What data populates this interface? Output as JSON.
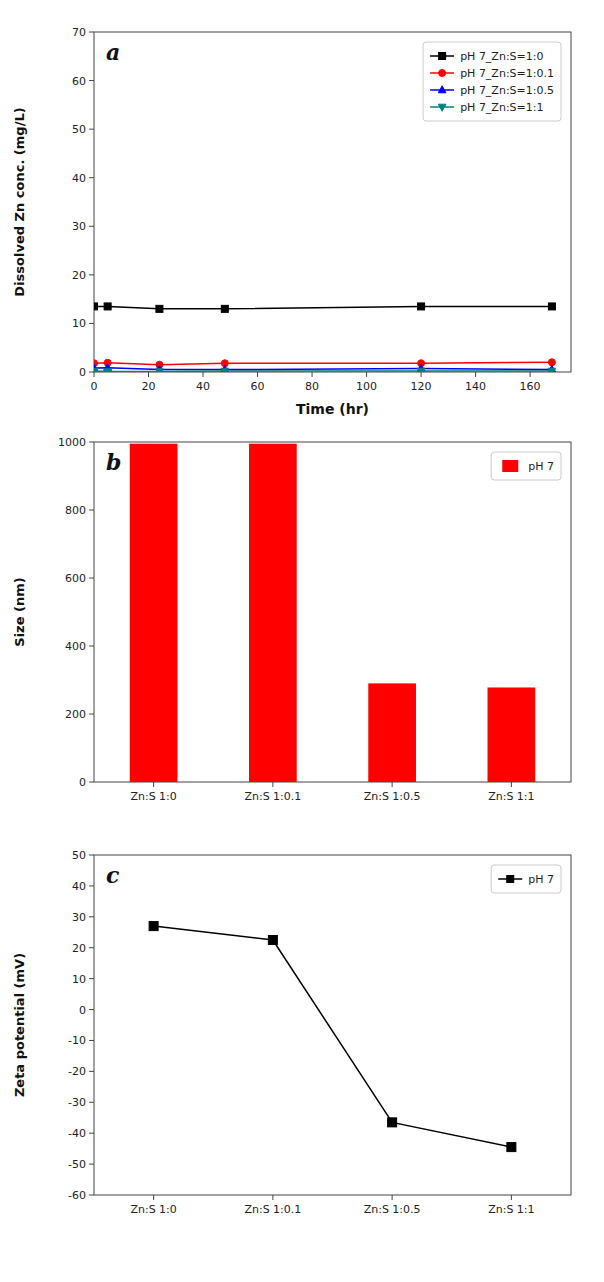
{
  "chart_data": [
    {
      "type": "line",
      "title": "a",
      "x": [
        0,
        5,
        24,
        48,
        120,
        168
      ],
      "series": [
        {
          "name": "pH 7_Zn:S=1:0",
          "color": "#000000",
          "marker": "square",
          "values": [
            13.5,
            13.5,
            13.0,
            13.0,
            13.5,
            13.5
          ]
        },
        {
          "name": "pH 7_Zn:S=1:0.1",
          "color": "#ff0000",
          "marker": "circle",
          "values": [
            1.8,
            1.9,
            1.5,
            1.8,
            1.8,
            2.0
          ]
        },
        {
          "name": "pH 7_Zn:S=1:0.5",
          "color": "#0000ff",
          "marker": "triangle-up",
          "values": [
            0.8,
            0.9,
            0.5,
            0.5,
            0.7,
            0.5
          ]
        },
        {
          "name": "pH 7_Zn:S=1:1",
          "color": "#008080",
          "marker": "triangle-down",
          "values": [
            0.2,
            0.1,
            0.1,
            0.2,
            0.2,
            0.2
          ]
        }
      ],
      "x_label": "Time (hr)",
      "y_label": "Dissolved Zn conc. (mg/L)",
      "xlim": [
        0,
        175
      ],
      "ylim": [
        0,
        70
      ],
      "xticks": [
        0,
        20,
        40,
        60,
        80,
        100,
        120,
        140,
        160
      ],
      "yticks": [
        0,
        10,
        20,
        30,
        40,
        50,
        60,
        70
      ],
      "legend": "upper right",
      "grid": false
    },
    {
      "type": "bar",
      "title": "b",
      "categories": [
        "Zn:S 1:0",
        "Zn:S 1:0.1",
        "Zn:S 1:0.5",
        "Zn:S 1:1"
      ],
      "series": [
        {
          "name": "pH 7",
          "color": "#ff0000",
          "values": [
            995,
            995,
            290,
            278
          ]
        }
      ],
      "y_label": "Size (nm)",
      "ylim": [
        0,
        1000
      ],
      "yticks": [
        0,
        200,
        400,
        600,
        800,
        1000
      ],
      "legend": "upper right",
      "grid": false
    },
    {
      "type": "line",
      "title": "c",
      "categories": [
        "Zn:S 1:0",
        "Zn:S 1:0.1",
        "Zn:S 1:0.5",
        "Zn:S 1:1"
      ],
      "series": [
        {
          "name": "pH 7",
          "color": "#000000",
          "marker": "square",
          "values": [
            27.0,
            22.5,
            -36.5,
            -44.5
          ]
        }
      ],
      "y_label": "Zeta potential (mV)",
      "ylim": [
        -60,
        50
      ],
      "yticks": [
        -60,
        -50,
        -40,
        -30,
        -20,
        -10,
        0,
        10,
        20,
        30,
        40,
        50
      ],
      "legend": "upper right",
      "grid": false
    }
  ]
}
